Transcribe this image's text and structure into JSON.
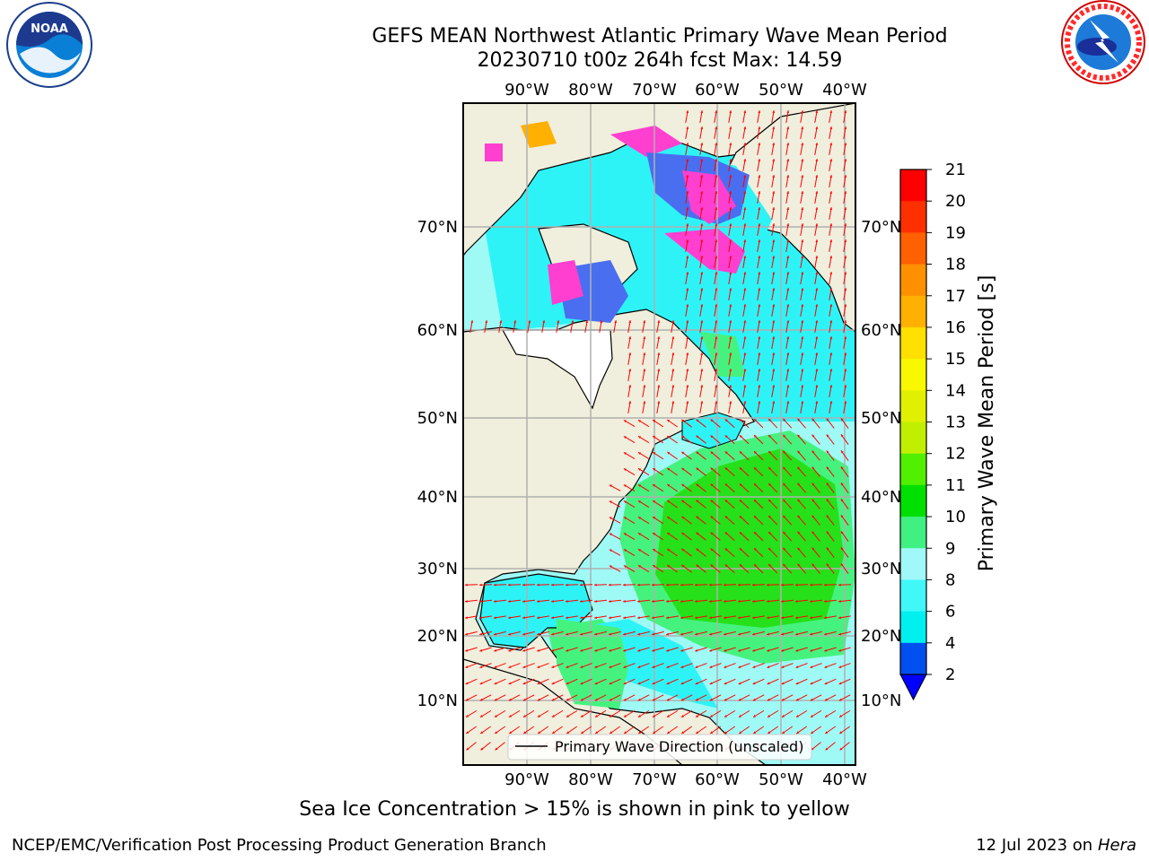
{
  "title": {
    "line1": "GEFS MEAN Northwest Atlantic Primary Wave Mean Period",
    "line2": "20230710 t00z 264h fcst   Max: 14.59"
  },
  "logos": {
    "left": {
      "name": "noaa-logo",
      "text": "NOAA"
    },
    "right": {
      "name": "nws-logo",
      "text": "NATIONAL WEATHER SERVICE"
    }
  },
  "map": {
    "lon_ticks": [
      "90°W",
      "80°W",
      "70°W",
      "60°W",
      "50°W",
      "40°W"
    ],
    "lat_ticks": [
      "70°N",
      "60°N",
      "50°N",
      "40°N",
      "30°N",
      "20°N",
      "10°N"
    ],
    "colors": {
      "land": "#f0eedc",
      "ocean_light": "#9ffaf6",
      "ocean_cyan": "#2ef3f6",
      "period_9_10": "#46f27e",
      "period_10_11": "#26e01a",
      "period_12_13": "#bff000",
      "period_13_14": "#e0fb00",
      "ice_pink": "#ff3fd0",
      "ice_blue": "#4a6ef0",
      "ice_orange": "#ffb000",
      "arrow": "#ff0000",
      "grid": "#b0b0b0"
    },
    "legend": {
      "label": "Primary Wave Direction (unscaled)"
    }
  },
  "colorbar": {
    "label": "Primary Wave Mean Period [s]",
    "ticks": [
      "2",
      "4",
      "6",
      "8",
      "9",
      "10",
      "11",
      "12",
      "13",
      "14",
      "15",
      "16",
      "17",
      "18",
      "19",
      "20",
      "21"
    ],
    "colors": [
      "#0050f0",
      "#00f0f0",
      "#40f8f8",
      "#a0f8f8",
      "#40f080",
      "#00e000",
      "#50f000",
      "#c0f000",
      "#e0f000",
      "#f8f800",
      "#ffe000",
      "#ffb000",
      "#ff9000",
      "#ff6000",
      "#ff3000",
      "#ff0000"
    ],
    "extend_color": "#0000ff"
  },
  "note": "Sea Ice Concentration > 15% is shown in pink to yellow",
  "footer": {
    "left": "NCEP/EMC/Verification Post Processing Product Generation Branch",
    "right_prefix": "12 Jul 2023 on ",
    "right_host": "Hera"
  }
}
